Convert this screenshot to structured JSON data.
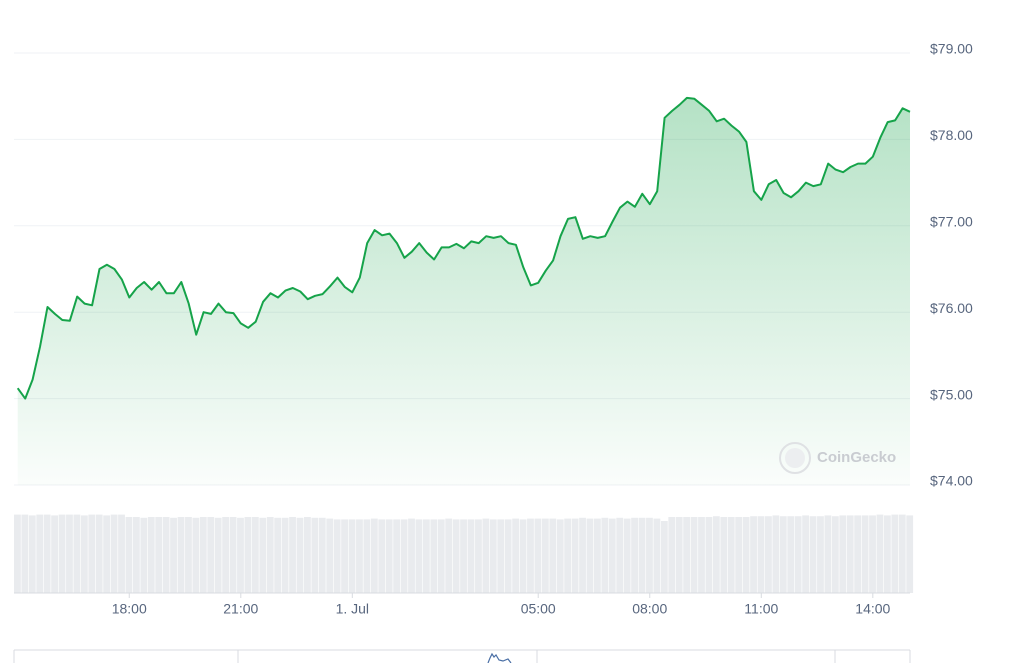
{
  "chart_data": {
    "type": "line",
    "x": [
      15,
      15.2,
      15.4,
      15.6,
      15.8,
      16,
      16.2,
      16.4,
      16.6,
      16.8,
      17,
      17.2,
      17.4,
      17.6,
      17.8,
      18,
      18.2,
      18.4,
      18.6,
      18.8,
      19,
      19.2,
      19.4,
      19.6,
      19.8,
      20,
      20.2,
      20.4,
      20.6,
      20.8,
      21,
      21.2,
      21.4,
      21.6,
      21.8,
      22,
      22.2,
      22.4,
      22.6,
      22.8,
      23,
      23.2,
      23.4,
      23.6,
      23.8,
      24,
      24.2,
      24.4,
      24.6,
      24.8,
      25,
      25.2,
      25.4,
      25.6,
      25.8,
      26,
      26.2,
      26.4,
      26.6,
      26.8,
      27,
      27.2,
      27.4,
      27.6,
      27.8,
      28,
      28.2,
      28.4,
      28.6,
      28.8,
      29,
      29.2,
      29.4,
      29.6,
      29.8,
      30,
      30.2,
      30.4,
      30.6,
      30.8,
      31,
      31.2,
      31.4,
      31.6,
      31.8,
      32,
      32.2,
      32.4,
      32.6,
      32.8,
      33,
      33.2,
      33.4,
      33.6,
      33.8,
      34,
      34.2,
      34.4,
      34.6,
      34.8,
      35,
      35.2,
      35.4,
      35.6,
      35.8,
      36,
      36.2,
      36.4,
      36.6,
      36.8,
      37,
      37.2,
      37.4,
      37.6,
      37.8,
      38,
      38.2,
      38.4,
      38.6,
      38.8,
      39
    ],
    "series": [
      {
        "color": "#16a34a",
        "values": [
          75.12,
          75.0,
          75.22,
          75.6,
          76.06,
          75.98,
          75.91,
          75.9,
          76.18,
          76.1,
          76.08,
          76.5,
          76.55,
          76.5,
          76.38,
          76.17,
          76.28,
          76.35,
          76.26,
          76.35,
          76.22,
          76.22,
          76.35,
          76.1,
          75.74,
          76.0,
          75.98,
          76.1,
          76.0,
          75.99,
          75.87,
          75.82,
          75.89,
          76.12,
          76.22,
          76.17,
          76.25,
          76.28,
          76.24,
          76.15,
          76.19,
          76.21,
          76.3,
          76.4,
          76.29,
          76.23,
          76.4,
          76.8,
          76.95,
          76.89,
          76.91,
          76.8,
          76.63,
          76.7,
          76.8,
          76.69,
          76.61,
          76.75,
          76.75,
          76.79,
          76.74,
          76.82,
          76.8,
          76.88,
          76.86,
          76.88,
          76.8,
          76.78,
          76.52,
          76.31,
          76.34,
          76.48,
          76.6,
          76.88,
          77.08,
          77.1,
          76.85,
          76.88,
          76.86,
          76.88,
          77.05,
          77.21,
          77.28,
          77.22,
          77.37,
          77.25,
          77.4,
          78.25,
          78.33,
          78.4,
          78.48,
          78.47,
          78.4,
          78.33,
          78.21,
          78.24,
          78.16,
          78.09,
          77.97,
          77.4,
          77.3,
          77.48,
          77.53,
          77.38,
          77.33,
          77.4,
          77.5,
          77.46,
          77.48,
          77.72,
          77.65,
          77.62,
          77.68,
          77.72,
          77.72,
          77.8,
          78.02,
          78.2,
          78.22,
          78.36,
          78.32
        ]
      }
    ],
    "volumes": [
      98,
      98,
      97,
      98,
      98,
      97,
      98,
      98,
      98,
      97,
      98,
      98,
      97,
      98,
      98,
      95,
      95,
      94,
      95,
      95,
      95,
      94,
      95,
      95,
      94,
      95,
      95,
      94,
      95,
      95,
      94,
      95,
      95,
      94,
      95,
      94,
      94,
      95,
      94,
      95,
      94,
      94,
      93,
      92,
      92,
      92,
      92,
      92,
      93,
      92,
      92,
      92,
      92,
      93,
      92,
      92,
      92,
      92,
      93,
      92,
      92,
      92,
      92,
      93,
      92,
      92,
      92,
      93,
      92,
      93,
      93,
      93,
      93,
      92,
      93,
      93,
      94,
      93,
      93,
      94,
      93,
      94,
      93,
      94,
      94,
      94,
      93,
      90,
      95,
      95,
      95,
      95,
      95,
      95,
      96,
      95,
      95,
      95,
      95,
      96,
      96,
      96,
      97,
      96,
      96,
      96,
      97,
      96,
      96,
      97,
      96,
      97,
      97,
      97,
      97,
      97,
      98,
      97,
      98,
      98,
      97
    ],
    "xlim": [
      14.9,
      39.0
    ],
    "ylim": [
      74,
      79
    ],
    "yticks": [
      {
        "value": 74,
        "label": "$74.00"
      },
      {
        "value": 75,
        "label": "$75.00"
      },
      {
        "value": 76,
        "label": "$76.00"
      },
      {
        "value": 77,
        "label": "$77.00"
      },
      {
        "value": 78,
        "label": "$78.00"
      },
      {
        "value": 79,
        "label": "$79.00"
      }
    ],
    "xticks": [
      {
        "value": 18,
        "label": "18:00"
      },
      {
        "value": 21,
        "label": "21:00"
      },
      {
        "value": 24,
        "label": "1. Jul"
      },
      {
        "value": 29,
        "label": "05:00"
      },
      {
        "value": 32,
        "label": "08:00"
      },
      {
        "value": 35,
        "label": "11:00"
      },
      {
        "value": 38,
        "label": "14:00"
      }
    ],
    "grid": true,
    "watermark": "CoinGecko"
  }
}
